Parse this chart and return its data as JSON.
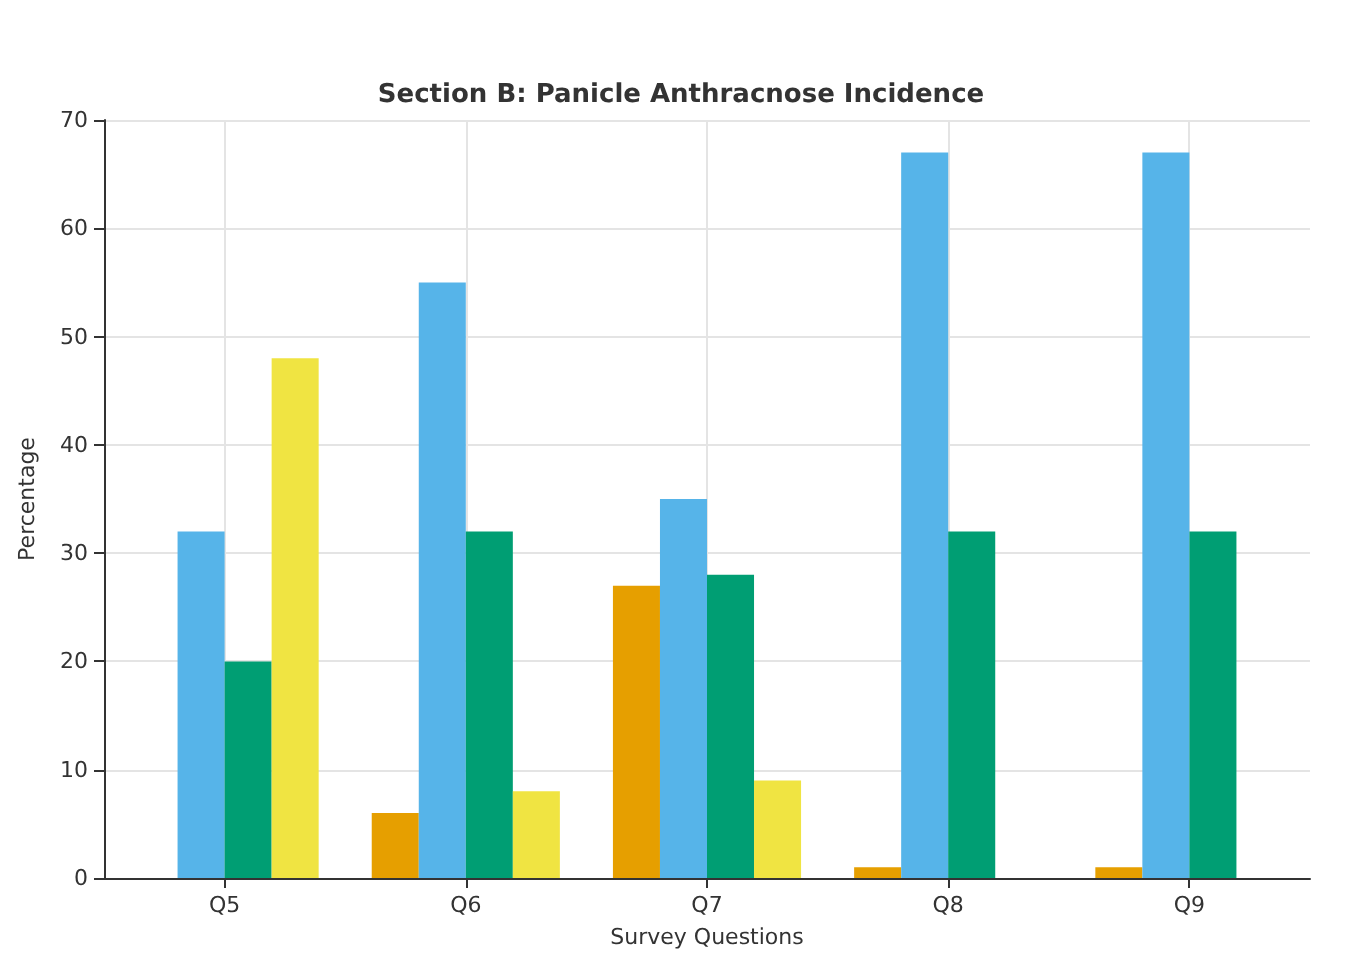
{
  "chart_data": {
    "type": "bar",
    "title": "Section B: Panicle Anthracnose Incidence",
    "xlabel": "Survey Questions",
    "ylabel": "Percentage",
    "categories": [
      "Q5",
      "Q6",
      "Q7",
      "Q8",
      "Q9"
    ],
    "series": [
      {
        "color": "#e69f00",
        "values": [
          null,
          6,
          27,
          1,
          1
        ]
      },
      {
        "color": "#56b4e9",
        "values": [
          32,
          55,
          35,
          67,
          67
        ]
      },
      {
        "color": "#009e73",
        "values": [
          20,
          32,
          28,
          32,
          32
        ]
      },
      {
        "color": "#f0e442",
        "values": [
          48,
          8,
          9,
          null,
          null
        ]
      }
    ],
    "ylim": [
      0,
      70
    ],
    "yticks": [
      0,
      10,
      20,
      30,
      40,
      50,
      60,
      70
    ],
    "grid": true
  }
}
